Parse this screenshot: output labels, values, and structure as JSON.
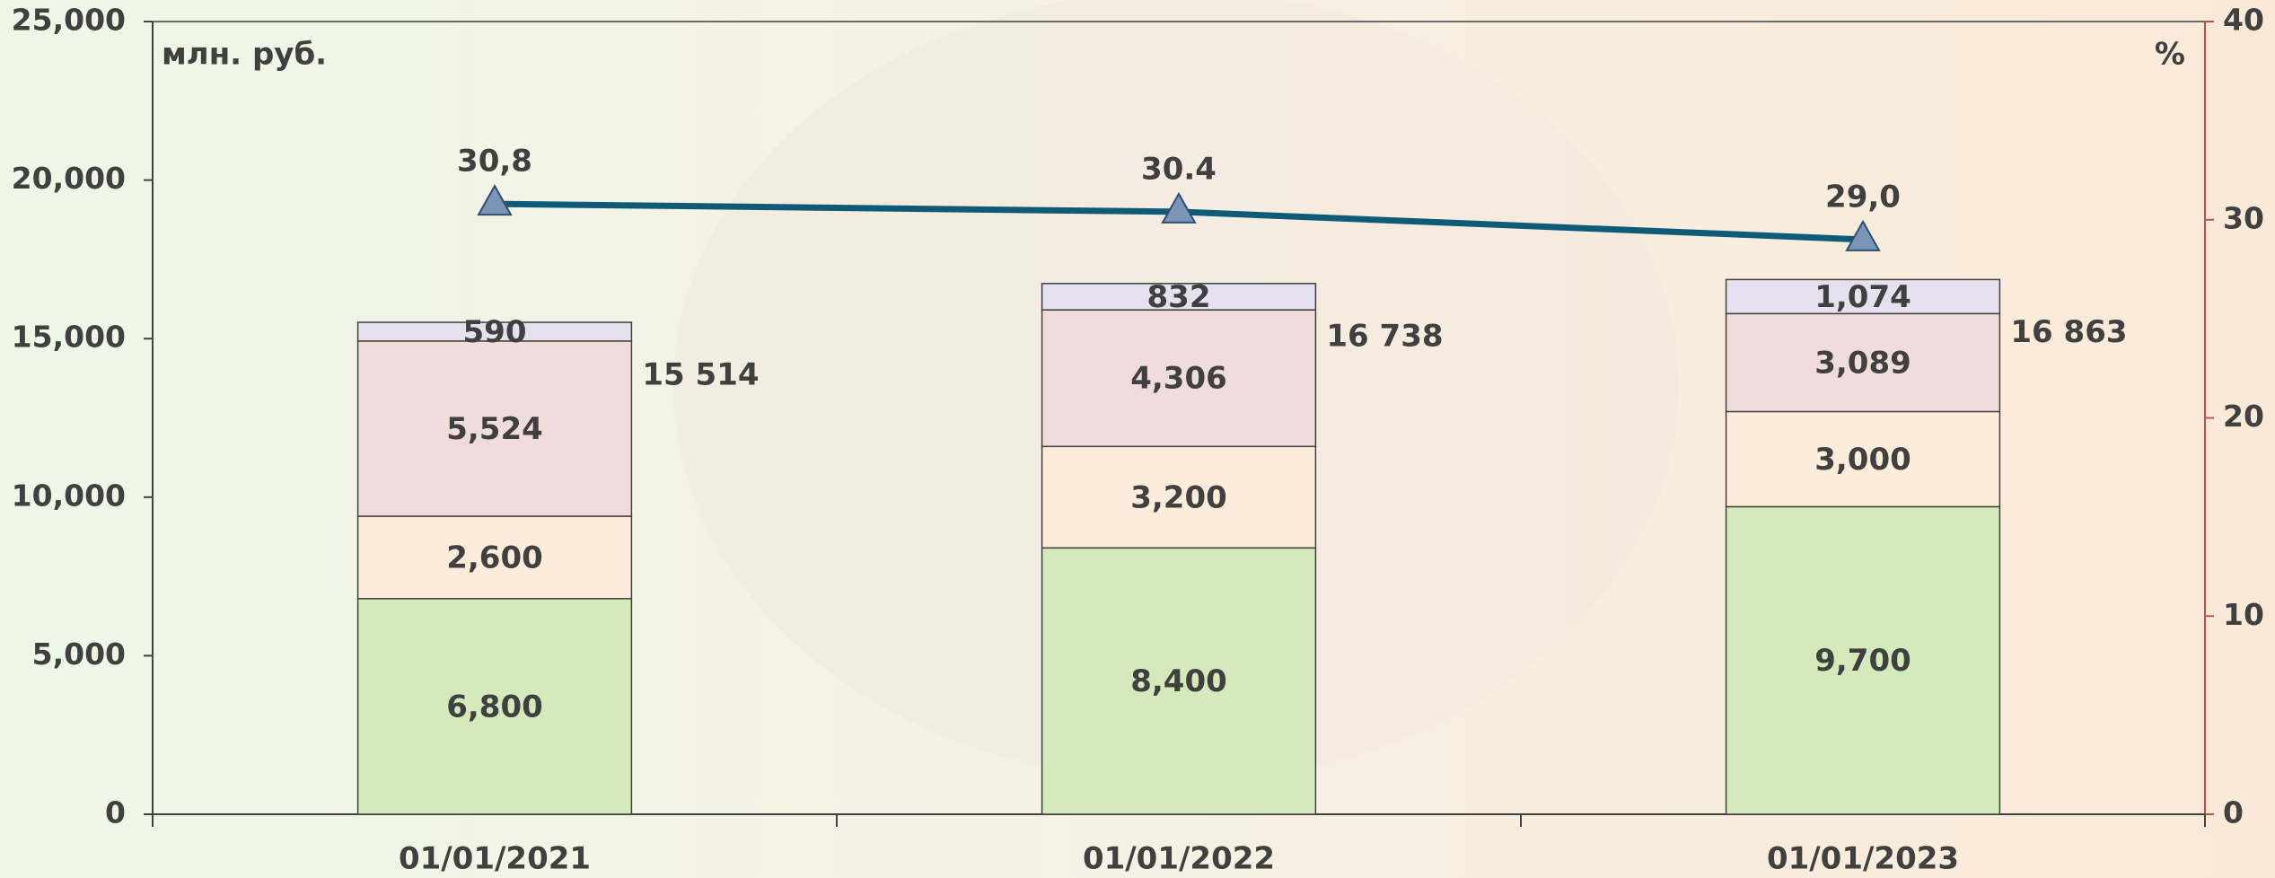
{
  "chart_data": {
    "type": "bar",
    "y_label": "млн. руб.",
    "y2_label": "%",
    "categories": [
      "01/01/2021",
      "01/01/2022",
      "01/01/2023"
    ],
    "series": [
      {
        "color": "#d4eabb",
        "values": [
          6800,
          8400,
          9700
        ],
        "value_labels": [
          "6,800",
          "8,400",
          "9,700"
        ]
      },
      {
        "color": "#fdecd9",
        "values": [
          2600,
          3200,
          3000
        ],
        "value_labels": [
          "2,600",
          "3,200",
          "3,000"
        ]
      },
      {
        "color": "#f1dcdc",
        "values": [
          5524,
          4306,
          3089
        ],
        "value_labels": [
          "5,524",
          "4,306",
          "3,089"
        ]
      },
      {
        "color": "#e5e1ee",
        "values": [
          590,
          832,
          1074
        ],
        "value_labels": [
          "590",
          "832",
          "1,074"
        ]
      },
      {
        "type": "line",
        "axis": "y2",
        "color": "#0f5a77",
        "marker_color": "#7a95b5",
        "values": [
          30.8,
          30.4,
          29.0
        ],
        "value_labels": [
          "30,8",
          "30.4",
          "29,0"
        ]
      }
    ],
    "totals": {
      "values": [
        15514,
        16738,
        16863
      ],
      "value_labels": [
        "15 514",
        "16 738",
        "16 863"
      ],
      "color": "#7b1f7f"
    },
    "ylim": [
      0,
      25000
    ],
    "yticks": [
      0,
      {
        "value": 5000,
        "label": "5,000"
      },
      {
        "value": 10000,
        "label": "10,000"
      },
      {
        "value": 15000,
        "label": "15,000"
      },
      {
        "value": 20000,
        "label": "20,000"
      },
      {
        "value": 25000,
        "label": "25,000"
      }
    ],
    "y2lim": [
      0,
      40
    ],
    "y2ticks": [
      0,
      10,
      20,
      30,
      40
    ]
  }
}
